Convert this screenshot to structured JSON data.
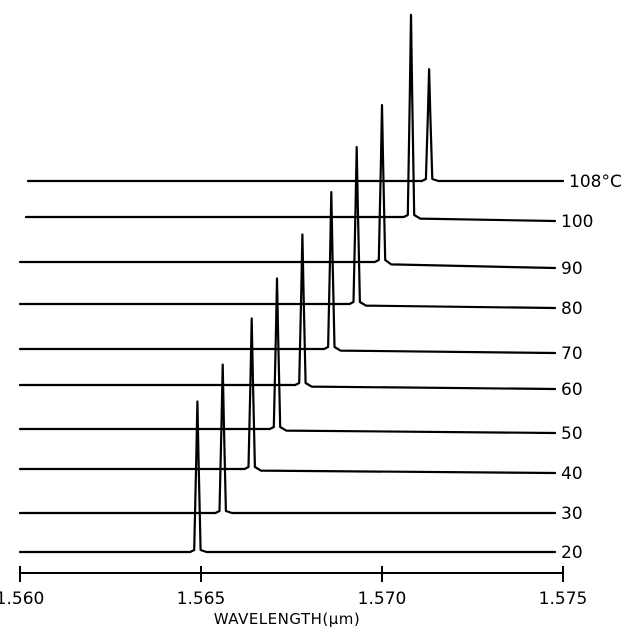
{
  "chart_data": {
    "type": "line",
    "title": "",
    "xlabel": "WAVELENGTH(μm)",
    "ylabel": "",
    "xlim": [
      1.56,
      1.575
    ],
    "x_ticks": [
      1.56,
      1.565,
      1.57,
      1.575
    ],
    "x_tick_labels": [
      "1.560",
      "1.565",
      "1.570",
      "1.575"
    ],
    "grid": false,
    "legend": "none",
    "series": [
      {
        "label": "20",
        "peak_wavelength": 1.5649,
        "relative_peak_height": 0.7
      },
      {
        "label": "30",
        "peak_wavelength": 1.5656,
        "relative_peak_height": 0.69
      },
      {
        "label": "40",
        "peak_wavelength": 1.5664,
        "relative_peak_height": 0.7
      },
      {
        "label": "50",
        "peak_wavelength": 1.5671,
        "relative_peak_height": 0.7
      },
      {
        "label": "60",
        "peak_wavelength": 1.5678,
        "relative_peak_height": 0.7
      },
      {
        "label": "70",
        "peak_wavelength": 1.5686,
        "relative_peak_height": 0.73
      },
      {
        "label": "80",
        "peak_wavelength": 1.5693,
        "relative_peak_height": 0.73
      },
      {
        "label": "90",
        "peak_wavelength": 1.57,
        "relative_peak_height": 0.73
      },
      {
        "label": "100",
        "peak_wavelength": 1.5708,
        "relative_peak_height": 0.94
      },
      {
        "label": "108°C",
        "peak_wavelength": 1.5713,
        "relative_peak_height": 0.52
      }
    ]
  }
}
